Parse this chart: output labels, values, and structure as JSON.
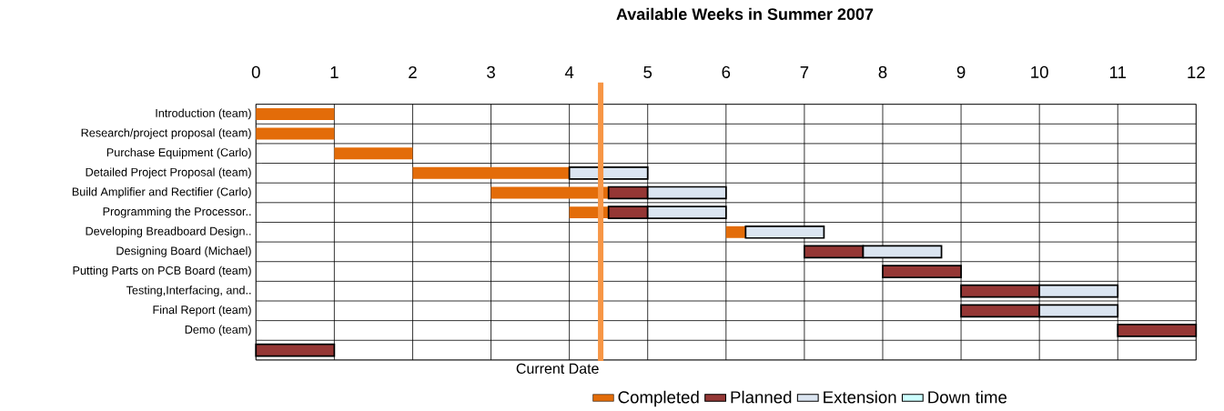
{
  "chart_data": {
    "type": "bar",
    "orientation": "horizontal",
    "title": "Available Weeks in Summer 2007",
    "categories": [
      "Introduction (team)",
      "Research/project proposal (team)",
      "Purchase Equipment (Carlo)",
      "Detailed Project Proposal (team)",
      "Build Amplifier and Rectifier (Carlo)",
      "Programming the Processor..",
      "Developing Breadboard Design..",
      "Designing Board (Michael)",
      "Putting Parts on PCB Board (team)",
      "Testing,Interfacing, and..",
      "Final Report (team)",
      "Demo (team)",
      null
    ],
    "series": [
      {
        "name": "Completed",
        "color": "#e36c09",
        "base": [
          0,
          0,
          1,
          2,
          3,
          4,
          6,
          null,
          null,
          null,
          null,
          null,
          null
        ],
        "values": [
          1,
          1,
          1,
          2,
          1.5,
          0.5,
          0.25,
          null,
          null,
          null,
          null,
          null,
          null
        ]
      },
      {
        "name": "Planned",
        "color": "#953735",
        "base": [
          null,
          null,
          null,
          null,
          4.5,
          4.5,
          null,
          7,
          8,
          9,
          9,
          11,
          0
        ],
        "values": [
          null,
          null,
          null,
          null,
          0.5,
          0.5,
          null,
          0.75,
          1,
          1,
          1,
          1,
          1
        ]
      },
      {
        "name": "Extension",
        "color": "#dbe5f1",
        "base": [
          null,
          null,
          null,
          4,
          5,
          5,
          6.25,
          7.75,
          null,
          10,
          10,
          null,
          null
        ],
        "values": [
          null,
          null,
          null,
          1,
          1,
          1,
          1,
          1,
          null,
          1,
          1,
          null,
          null
        ]
      },
      {
        "name": "Down time",
        "color": "#ccffff",
        "values": [
          null,
          null,
          null,
          null,
          null,
          null,
          null,
          null,
          null,
          null,
          null,
          null,
          null
        ]
      }
    ],
    "xlim": [
      0,
      12
    ],
    "xticks": [
      0,
      1,
      2,
      3,
      4,
      5,
      6,
      7,
      8,
      9,
      10,
      11,
      12
    ],
    "grid": true,
    "legend": "bottom",
    "ref_lines": [
      {
        "axis": "x",
        "value": 4.4,
        "label": "Current Date",
        "color": "#f79646"
      }
    ]
  }
}
